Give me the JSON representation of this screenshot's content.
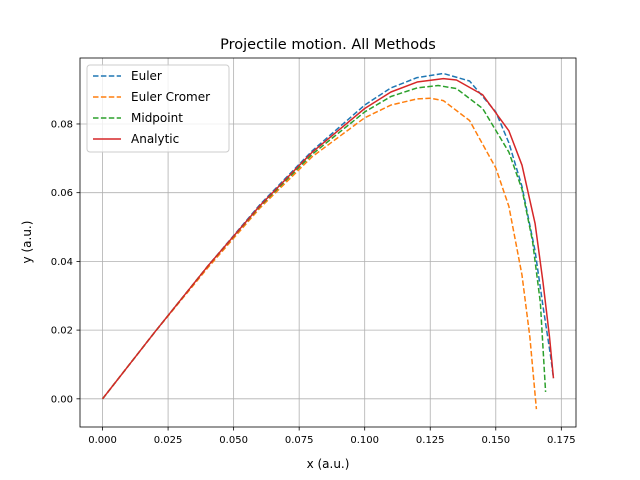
{
  "chart_data": {
    "type": "line",
    "title": "Projectile motion. All Methods",
    "xlabel": "x (a.u.)",
    "ylabel": "y (a.u.)",
    "xlim": [
      -0.0086,
      0.1806
    ],
    "ylim": [
      -0.0082,
      0.0992
    ],
    "xticks": [
      0.0,
      0.025,
      0.05,
      0.075,
      0.1,
      0.125,
      0.15,
      0.175
    ],
    "xtick_labels": [
      "0.000",
      "0.025",
      "0.050",
      "0.075",
      "0.100",
      "0.125",
      "0.150",
      "0.175"
    ],
    "yticks": [
      0.0,
      0.02,
      0.04,
      0.06,
      0.08
    ],
    "ytick_labels": [
      "0.00",
      "0.02",
      "0.04",
      "0.06",
      "0.08"
    ],
    "grid": true,
    "legend": "top-left",
    "series": [
      {
        "name": "Euler",
        "color": "#1f77b4",
        "dash": "dashed",
        "x": [
          0.0,
          0.02,
          0.04,
          0.06,
          0.08,
          0.1,
          0.11,
          0.12,
          0.13,
          0.14,
          0.15,
          0.155,
          0.16,
          0.165,
          0.168,
          0.171,
          0.172
        ],
        "y": [
          0.0,
          0.0195,
          0.0385,
          0.0565,
          0.0722,
          0.0855,
          0.0905,
          0.0935,
          0.0947,
          0.0925,
          0.0835,
          0.0745,
          0.0618,
          0.043,
          0.027,
          0.012,
          0.006
        ]
      },
      {
        "name": "Euler Cromer",
        "color": "#ff7f0e",
        "dash": "dashed",
        "x": [
          0.0,
          0.02,
          0.04,
          0.06,
          0.08,
          0.1,
          0.11,
          0.12,
          0.125,
          0.13,
          0.14,
          0.15,
          0.155,
          0.16,
          0.163,
          0.1655
        ],
        "y": [
          0.0,
          0.0195,
          0.038,
          0.0555,
          0.0705,
          0.0818,
          0.0855,
          0.0873,
          0.0875,
          0.0868,
          0.081,
          0.0672,
          0.056,
          0.036,
          0.018,
          -0.003
        ]
      },
      {
        "name": "Midpoint",
        "color": "#2ca02c",
        "dash": "dashed",
        "x": [
          0.0,
          0.02,
          0.04,
          0.06,
          0.08,
          0.1,
          0.11,
          0.12,
          0.128,
          0.135,
          0.145,
          0.155,
          0.16,
          0.164,
          0.167,
          0.169
        ],
        "y": [
          0.0,
          0.0195,
          0.0385,
          0.056,
          0.0712,
          0.0835,
          0.088,
          0.0905,
          0.0912,
          0.0903,
          0.0845,
          0.0718,
          0.061,
          0.046,
          0.028,
          0.002
        ]
      },
      {
        "name": "Analytic",
        "color": "#d62728",
        "dash": "solid",
        "x": [
          0.0,
          0.02,
          0.04,
          0.06,
          0.08,
          0.1,
          0.11,
          0.12,
          0.13,
          0.135,
          0.145,
          0.155,
          0.16,
          0.165,
          0.168,
          0.1705,
          0.172
        ],
        "y": [
          0.0,
          0.0195,
          0.0385,
          0.0562,
          0.0718,
          0.0845,
          0.0893,
          0.0922,
          0.0932,
          0.0928,
          0.0885,
          0.078,
          0.068,
          0.051,
          0.034,
          0.018,
          0.006
        ]
      }
    ]
  }
}
